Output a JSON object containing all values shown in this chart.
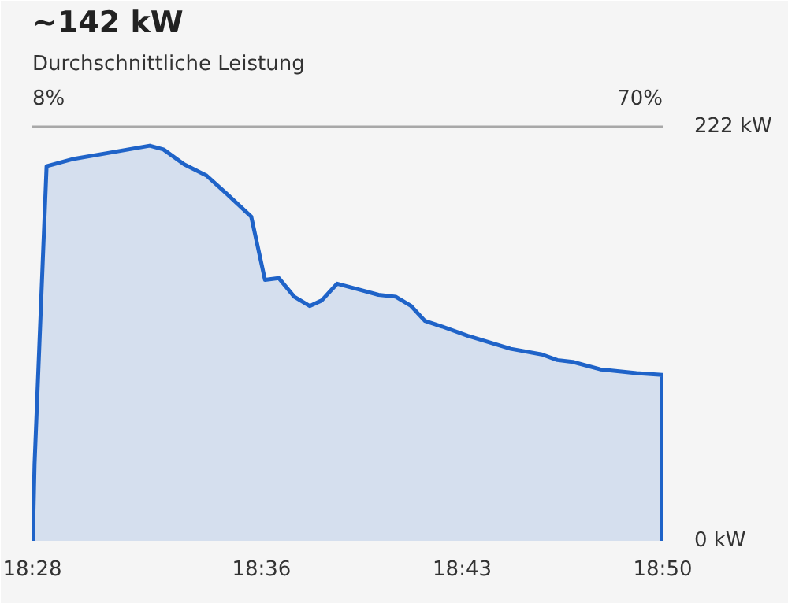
{
  "chart_data": {
    "type": "area",
    "title": "~142 kW",
    "subtitle": "Durchschnittliche Leistung",
    "x": [
      18.467,
      18.468,
      18.475,
      18.491,
      18.51,
      18.535,
      18.543,
      18.555,
      18.568,
      18.58,
      18.594,
      18.602,
      18.61,
      18.619,
      18.628,
      18.635,
      18.644,
      18.656,
      18.668,
      18.678,
      18.687,
      18.695,
      18.705,
      18.72,
      18.745,
      18.763,
      18.772,
      18.781,
      18.797,
      18.818,
      18.833,
      18.833
    ],
    "series": [
      {
        "color": "#1f63c8",
        "values": [
          0,
          41,
          201,
          205,
          208,
          212,
          210,
          202,
          196,
          186,
          174,
          140,
          141,
          131,
          126,
          129,
          138,
          135,
          132,
          131,
          126,
          118,
          115,
          110,
          103,
          100,
          97,
          96,
          92,
          90,
          89,
          0
        ]
      }
    ],
    "xlim": [
      18.4667,
      18.8333
    ],
    "xticks": [
      {
        "value": 18.4667,
        "label": "18:28"
      },
      {
        "value": 18.6,
        "label": "18:36"
      },
      {
        "value": 18.7167,
        "label": "18:43"
      },
      {
        "value": 18.8333,
        "label": "18:50"
      }
    ],
    "ylim": [
      0,
      245
    ],
    "yticks": [
      {
        "value": 0,
        "label": "0 kW"
      },
      {
        "value": 222,
        "label": "222 kW"
      }
    ],
    "grid": "y",
    "annotations": [
      "8%",
      "70%"
    ]
  }
}
